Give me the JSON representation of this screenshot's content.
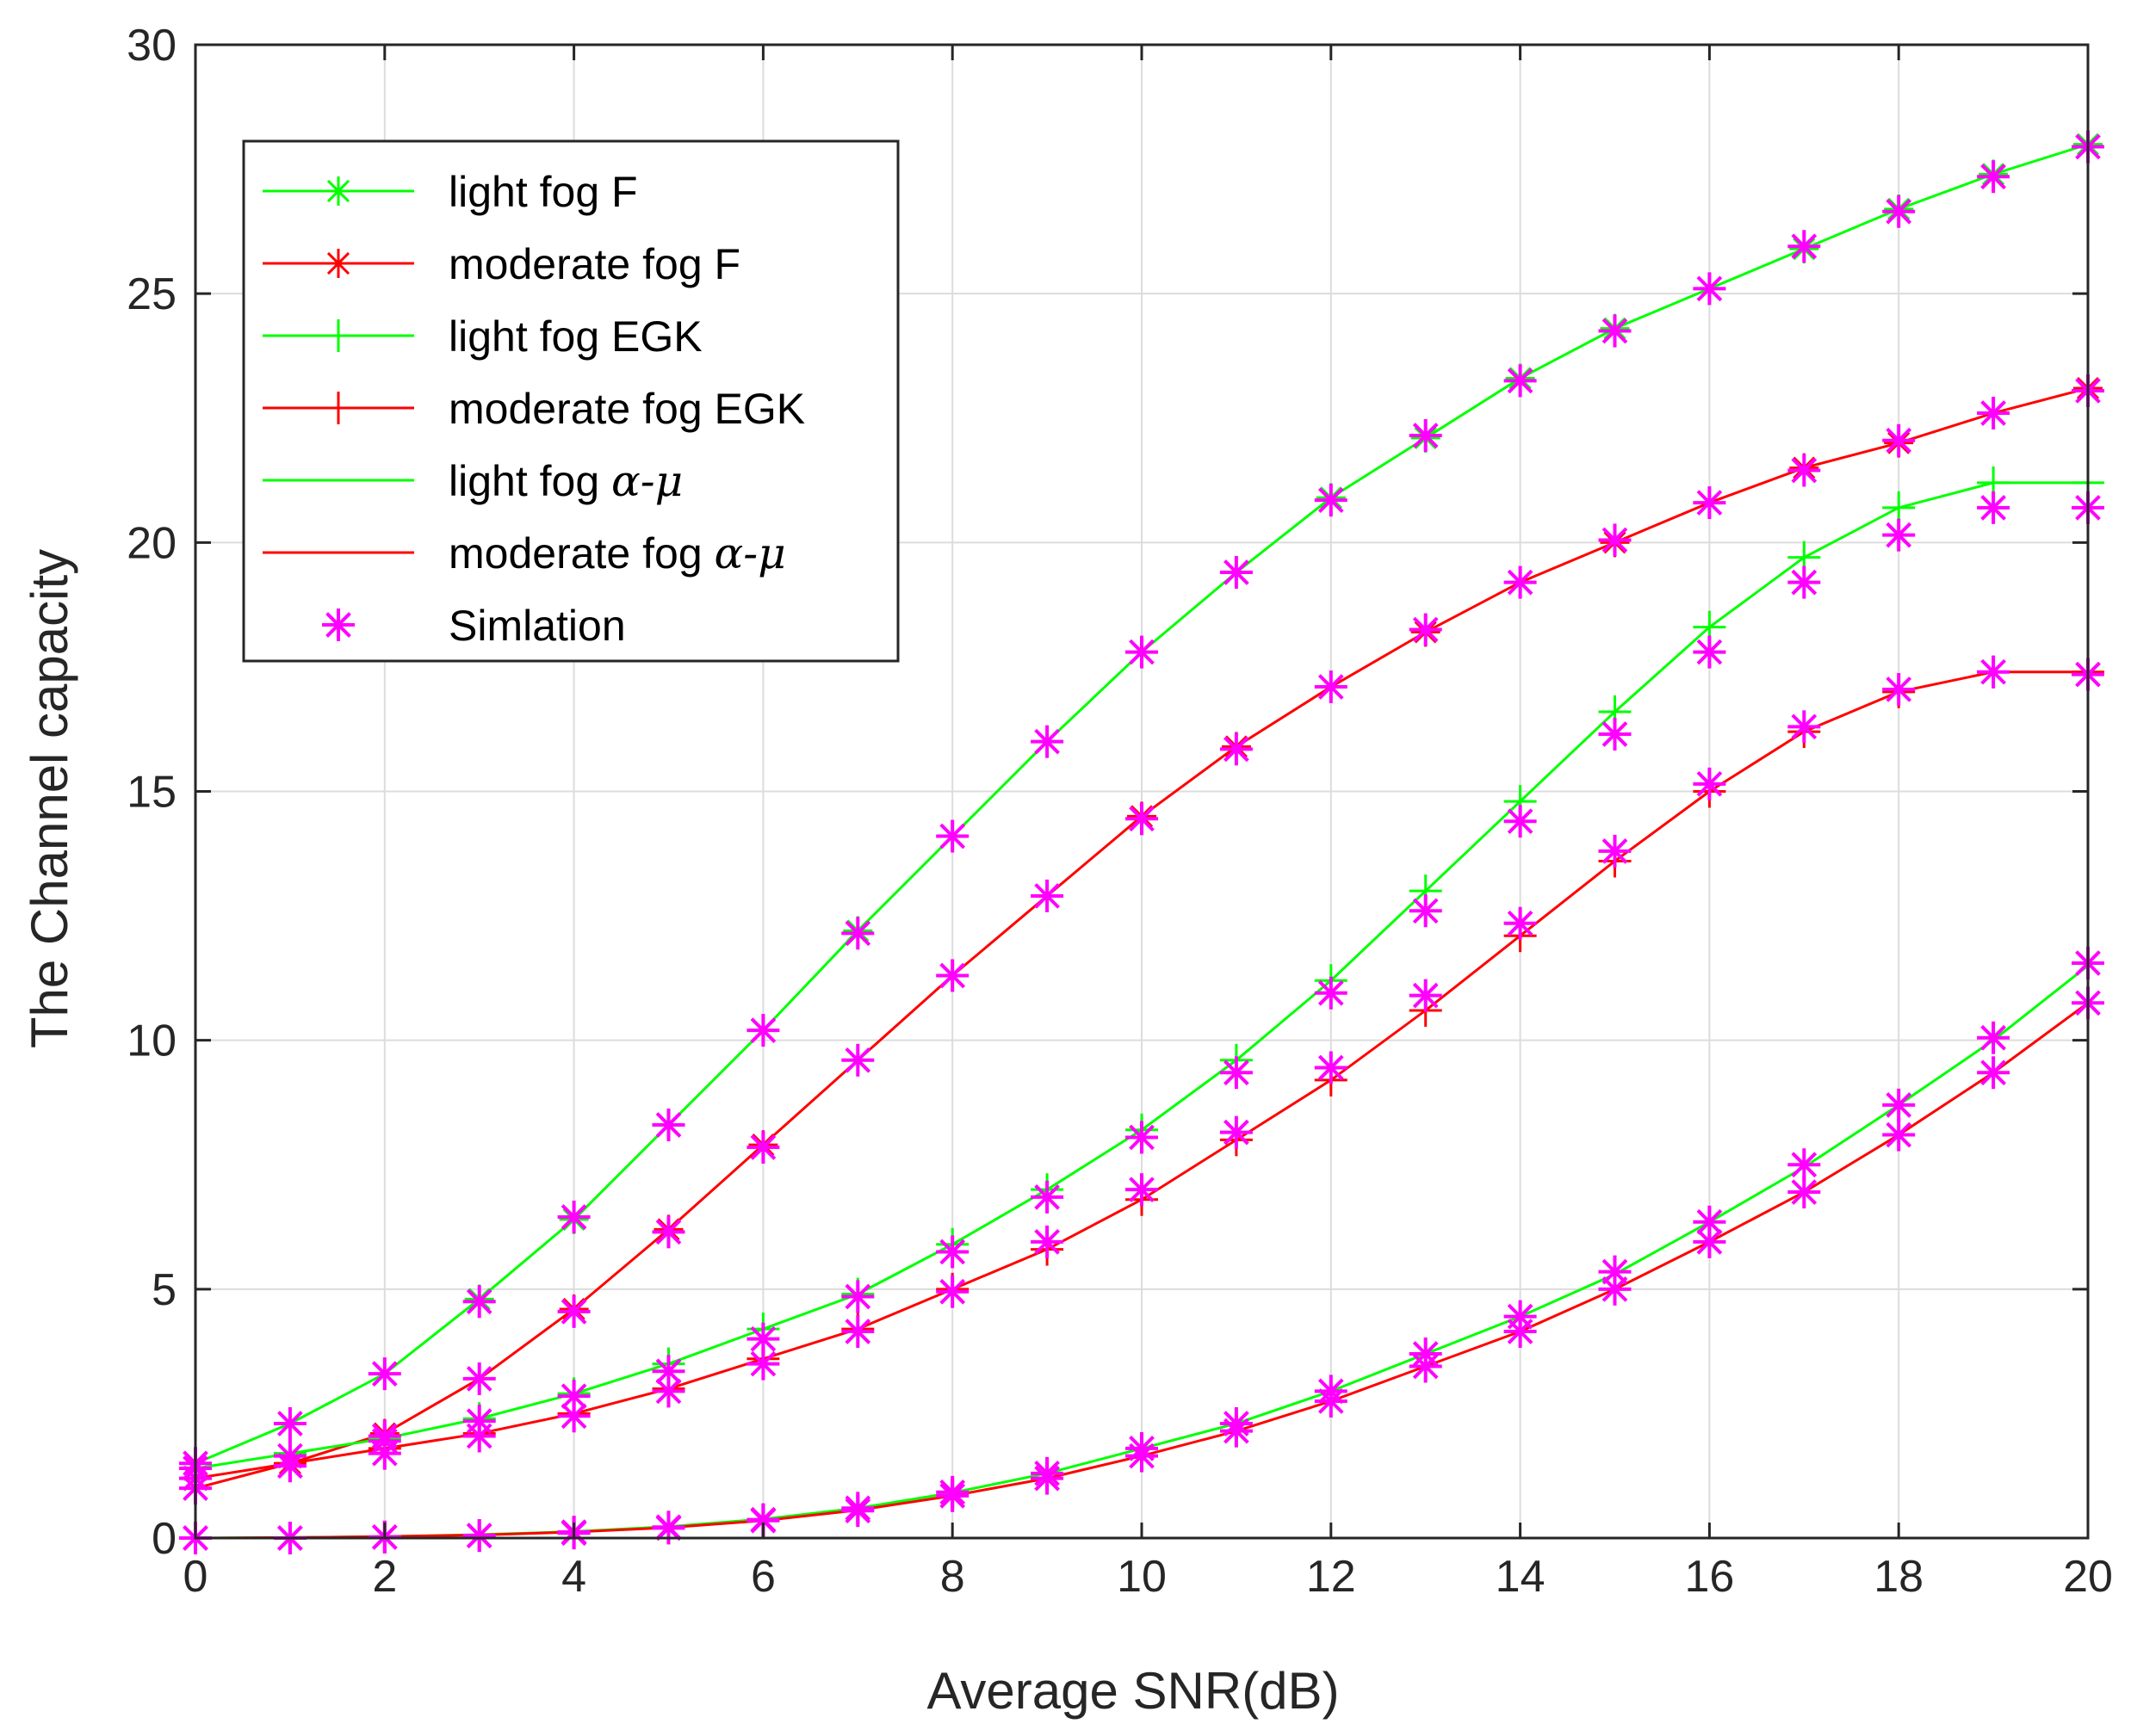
{
  "chart_data": {
    "type": "line",
    "title": "",
    "xlabel": "Average SNR(dB)",
    "ylabel": "The Channel capacity",
    "xlim": [
      0,
      20
    ],
    "ylim": [
      0,
      30
    ],
    "xticks": [
      0,
      2,
      4,
      6,
      8,
      10,
      12,
      14,
      16,
      18,
      20
    ],
    "yticks": [
      0,
      5,
      10,
      15,
      20,
      25,
      30
    ],
    "grid": true,
    "legend_position": "top-left",
    "x": [
      0,
      1,
      2,
      3,
      4,
      5,
      6,
      7,
      8,
      9,
      10,
      11,
      12,
      13,
      14,
      15,
      16,
      17,
      18,
      19,
      20
    ],
    "colors": {
      "green": "#00ff00",
      "red": "#ff0000",
      "magenta": "#ff00ff",
      "axis": "#262626",
      "grid": "#dcdcdc"
    },
    "series": [
      {
        "name": "light fog F",
        "label_main": "light fog F",
        "label_math": "",
        "color": "#00ff00",
        "marker": "asterisk",
        "line": true,
        "values": [
          1.5,
          2.3,
          3.3,
          4.8,
          6.4,
          8.3,
          10.2,
          12.2,
          14.1,
          16.0,
          17.8,
          19.4,
          20.9,
          22.1,
          23.3,
          24.3,
          25.1,
          25.9,
          26.7,
          27.4,
          28.0
        ]
      },
      {
        "name": "moderate fog F",
        "label_main": "moderate fog F",
        "label_math": "",
        "color": "#ff0000",
        "marker": "asterisk",
        "line": true,
        "values": [
          1.0,
          1.5,
          2.1,
          3.2,
          4.6,
          6.2,
          7.9,
          9.6,
          11.3,
          12.9,
          14.5,
          15.9,
          17.1,
          18.2,
          19.2,
          20.0,
          20.8,
          21.5,
          22.0,
          22.6,
          23.1
        ]
      },
      {
        "name": "light fog EGK",
        "label_main": "light fog EGK",
        "label_math": "",
        "color": "#00ff00",
        "marker": "plus",
        "line": true,
        "values": [
          1.4,
          1.7,
          2.0,
          2.4,
          2.9,
          3.5,
          4.2,
          4.9,
          5.9,
          7.0,
          8.2,
          9.6,
          11.2,
          13.0,
          14.8,
          16.6,
          18.3,
          19.7,
          20.7,
          21.2,
          21.2
        ]
      },
      {
        "name": "moderate fog EGK",
        "label_main": "moderate fog EGK",
        "label_math": "",
        "color": "#ff0000",
        "marker": "plus",
        "line": true,
        "values": [
          1.2,
          1.5,
          1.8,
          2.1,
          2.5,
          3.0,
          3.6,
          4.2,
          5.0,
          5.8,
          6.8,
          8.0,
          9.2,
          10.6,
          12.1,
          13.6,
          15.0,
          16.2,
          17.0,
          17.4,
          17.4
        ]
      },
      {
        "name": "light fog alpha-mu",
        "label_main": "light fog ",
        "label_math": "α-μ",
        "color": "#00ff00",
        "marker": "none",
        "line": true,
        "values": [
          0.0,
          0.01,
          0.03,
          0.07,
          0.13,
          0.23,
          0.38,
          0.6,
          0.91,
          1.3,
          1.8,
          2.3,
          2.95,
          3.7,
          4.45,
          5.3,
          6.35,
          7.45,
          8.7,
          10.0,
          11.5
        ]
      },
      {
        "name": "moderate fog alpha-mu",
        "label_main": "moderate fog ",
        "label_math": "α-μ",
        "color": "#ff0000",
        "marker": "none",
        "line": true,
        "values": [
          0.0,
          0.01,
          0.03,
          0.06,
          0.12,
          0.21,
          0.35,
          0.56,
          0.85,
          1.2,
          1.65,
          2.15,
          2.75,
          3.45,
          4.15,
          5.0,
          5.95,
          6.95,
          8.1,
          9.35,
          10.75
        ]
      },
      {
        "name": "Simlation",
        "label_main": "Simlation",
        "label_math": "",
        "color": "#ff00ff",
        "marker": "asterisk",
        "line": false,
        "points": [
          [
            1.5,
            2.3,
            3.3,
            4.75,
            6.45,
            8.3,
            10.2,
            12.15,
            14.1,
            16.0,
            17.8,
            19.4,
            20.85,
            22.15,
            23.25,
            24.25,
            25.1,
            25.95,
            26.65,
            27.35,
            27.95
          ],
          [
            1.0,
            1.45,
            2.05,
            3.2,
            4.55,
            6.15,
            7.85,
            9.6,
            11.3,
            12.9,
            14.45,
            15.85,
            17.1,
            18.25,
            19.2,
            20.05,
            20.8,
            21.45,
            22.05,
            22.6,
            23.05
          ],
          [
            1.4,
            1.65,
            1.95,
            2.35,
            2.85,
            3.35,
            4.0,
            4.85,
            5.75,
            6.85,
            8.05,
            9.35,
            10.95,
            12.6,
            14.4,
            16.15,
            17.8,
            19.2,
            20.15,
            20.7,
            20.7
          ],
          [
            1.2,
            1.45,
            1.7,
            2.05,
            2.45,
            2.95,
            3.5,
            4.15,
            4.95,
            5.95,
            7.0,
            8.15,
            9.45,
            10.9,
            12.35,
            13.8,
            15.15,
            16.3,
            17.05,
            17.4,
            17.35
          ],
          [
            0.0,
            0.0,
            0.02,
            0.05,
            0.12,
            0.22,
            0.37,
            0.6,
            0.92,
            1.3,
            1.8,
            2.3,
            2.95,
            3.7,
            4.45,
            5.35,
            6.35,
            7.5,
            8.7,
            10.05,
            11.55
          ],
          [
            0.0,
            0.0,
            0.02,
            0.05,
            0.1,
            0.2,
            0.35,
            0.55,
            0.85,
            1.2,
            1.65,
            2.15,
            2.75,
            3.45,
            4.15,
            5.0,
            5.95,
            6.95,
            8.1,
            9.35,
            10.75
          ]
        ]
      }
    ]
  }
}
